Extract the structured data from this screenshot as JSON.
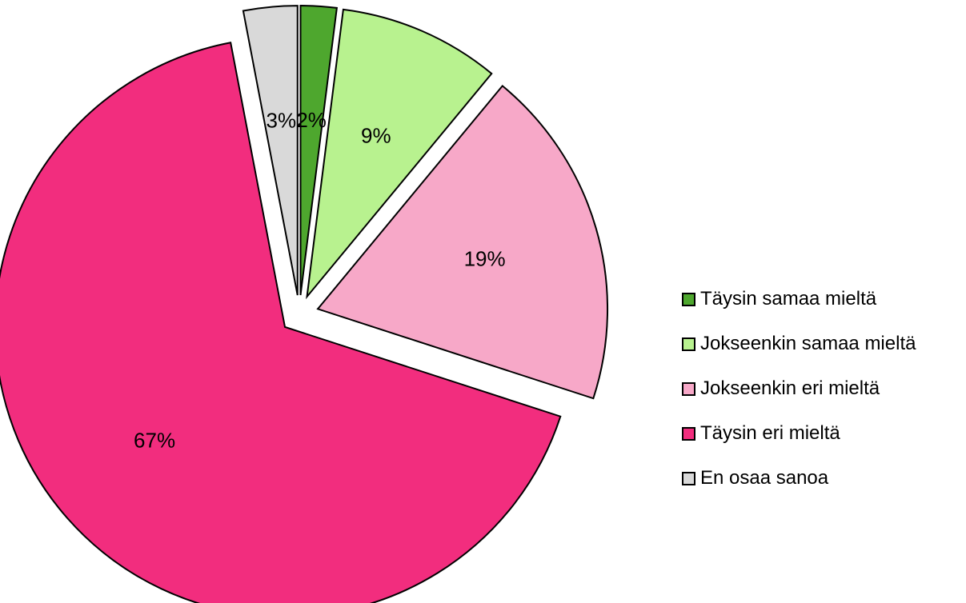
{
  "chart_data": {
    "type": "pie",
    "title": "",
    "categories": [
      "Täysin samaa mieltä",
      "Jokseenkin samaa mieltä",
      "Jokseenkin eri mieltä",
      "Täysin eri mieltä",
      "En osaa sanoa"
    ],
    "values": [
      2,
      9,
      19,
      67,
      3
    ],
    "labels": [
      "2%",
      "9%",
      "19%",
      "67%",
      "3%"
    ],
    "colors": [
      "#4ea72e",
      "#b8f28f",
      "#f7a8c8",
      "#f22d7e",
      "#d9d9d9"
    ],
    "exploded": true,
    "start_angle": "12 o'clock",
    "direction": "clockwise",
    "legend_position": "right"
  }
}
